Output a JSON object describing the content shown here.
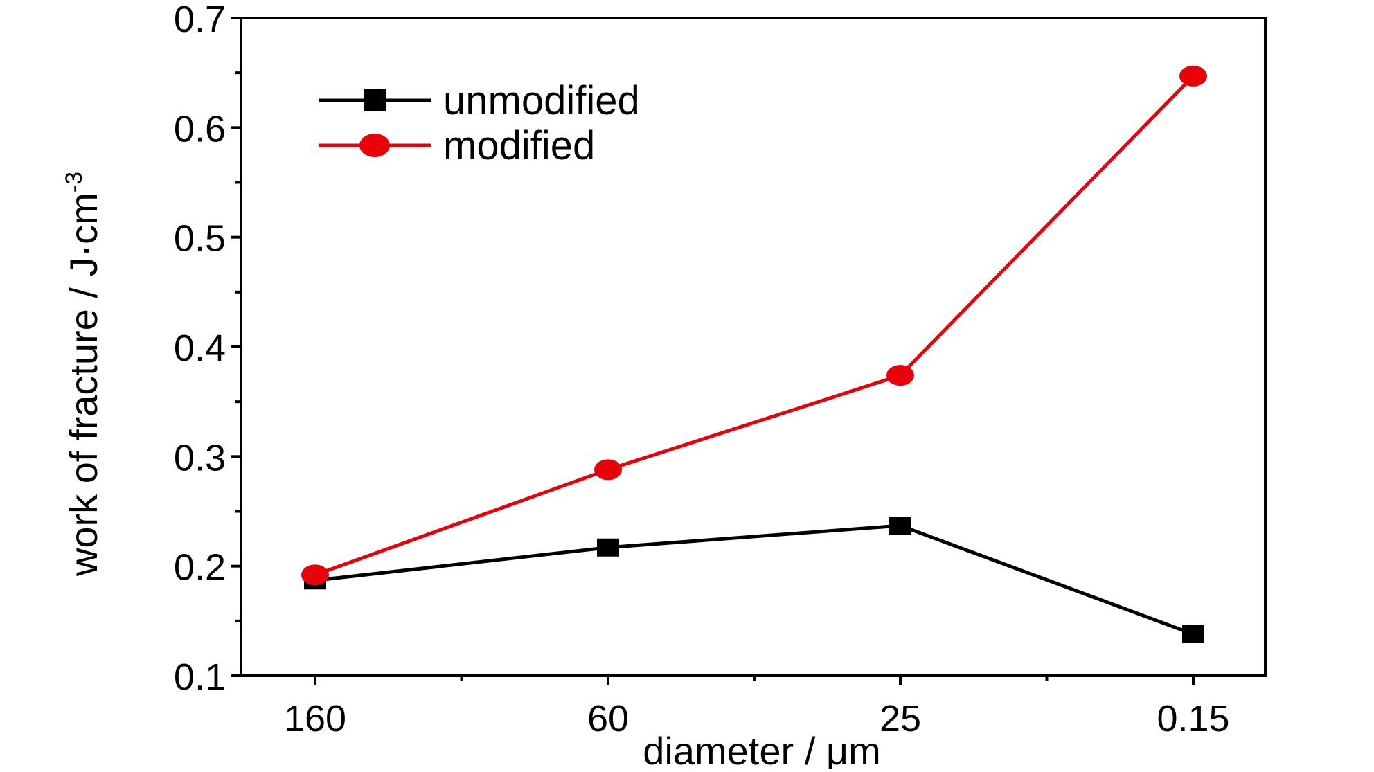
{
  "chart_data": {
    "type": "line",
    "categories": [
      "160",
      "60",
      "25",
      "0.15"
    ],
    "series": [
      {
        "name": "unmodified",
        "values": [
          0.187,
          0.217,
          0.237,
          0.138
        ],
        "color": "#000000",
        "marker": "square"
      },
      {
        "name": "modified",
        "values": [
          0.192,
          0.288,
          0.374,
          0.647
        ],
        "color": "#e8000b",
        "marker": "circle"
      }
    ],
    "xlabel": "diameter / μm",
    "ylabel": "work of fracture / J·cm",
    "ylabel_superscript": "-3",
    "ylim": [
      0.1,
      0.7
    ],
    "yticks": [
      "0.1",
      "0.2",
      "0.3",
      "0.4",
      "0.5",
      "0.6",
      "0.7"
    ],
    "legend_position": "top-left",
    "grid": false
  }
}
